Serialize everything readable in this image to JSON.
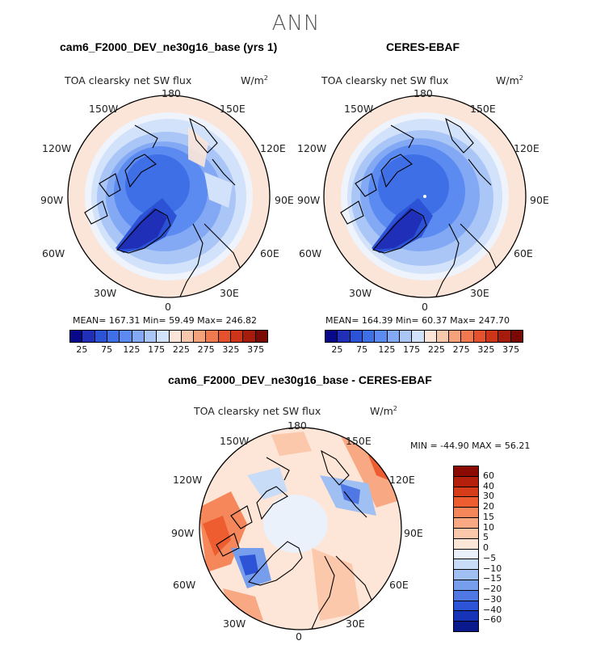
{
  "season": "ANN",
  "panels": [
    {
      "case_title": "cam6_F2000_DEV_ne30g16_base (yrs 1)",
      "var_title": "TOA clearsky net SW flux",
      "unit": "W/m",
      "unit_sup": "2",
      "lon_labels": {
        "top": "180",
        "tr": "150E",
        "rt": "120E",
        "right": "90E",
        "rb": "60E",
        "br": "30E",
        "bottom": "0",
        "bl": "30W",
        "lb": "60W",
        "left": "90W",
        "lt": "120W",
        "tl": "150W"
      },
      "stats": "MEAN= 167.31   Min= 59.49   Max= 246.82"
    },
    {
      "case_title": "CERES-EBAF",
      "var_title": "TOA clearsky net SW flux",
      "unit": "W/m",
      "unit_sup": "2",
      "lon_labels": {
        "top": "180",
        "tr": "150E",
        "rt": "120E",
        "right": "90E",
        "rb": "60E",
        "br": "30E",
        "bottom": "0",
        "bl": "30W",
        "lb": "60W",
        "left": "90W",
        "lt": "120W",
        "tl": "150W"
      },
      "stats": "MEAN= 164.39   Min= 60.37   Max= 247.70"
    },
    {
      "case_title": "cam6_F2000_DEV_ne30g16_base - CERES-EBAF",
      "var_title": "TOA clearsky net SW flux",
      "unit": "W/m",
      "unit_sup": "2",
      "lon_labels": {
        "top": "180",
        "tr": "150E",
        "rt": "120E",
        "right": "90E",
        "rb": "60E",
        "br": "30E",
        "bottom": "0",
        "bl": "30W",
        "lb": "60W",
        "left": "90W",
        "lt": "120W",
        "tl": "150W"
      },
      "stats": "MIN = -44.90  MAX =  56.21"
    }
  ],
  "colorbar_abs": {
    "colors": [
      "#08088a",
      "#1f2fb8",
      "#2c52d6",
      "#3f6fe6",
      "#5b8bf0",
      "#84a9f4",
      "#aac6f7",
      "#d2e2fa",
      "#fbe5d8",
      "#f8c8aa",
      "#f5a27b",
      "#f07950",
      "#e4512c",
      "#cc3519",
      "#a51b0d",
      "#7a0a04"
    ],
    "ticks": [
      "25",
      "75",
      "125",
      "175",
      "225",
      "275",
      "325",
      "375"
    ]
  },
  "colorbar_diff": {
    "colors": [
      "#8b0a02",
      "#b4200b",
      "#d83d1a",
      "#ee5d30",
      "#f5875a",
      "#f8a882",
      "#fbc8ab",
      "#fde6d8",
      "#eaf1fb",
      "#c8dbf7",
      "#a0bff3",
      "#779eed",
      "#4f78e4",
      "#2d54d6",
      "#1734b8",
      "#0a1a8c"
    ],
    "ticks": [
      "60",
      "40",
      "30",
      "20",
      "15",
      "10",
      "5",
      "0",
      "−5",
      "−10",
      "−15",
      "−20",
      "−30",
      "−40",
      "−60"
    ]
  }
}
